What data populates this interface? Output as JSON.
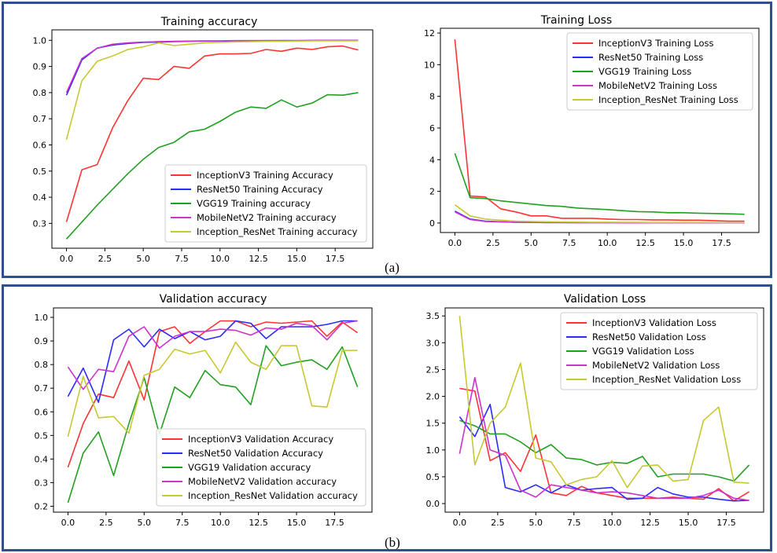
{
  "captions": {
    "a": "(a)",
    "b": "(b)"
  },
  "chart_data": [
    {
      "type": "line",
      "title": "Training accuracy",
      "xlabel": "",
      "ylabel": "",
      "xlim": [
        -0.95,
        19.95
      ],
      "ylim": [
        0.205,
        1.04
      ],
      "xticks": [
        "0.0",
        "2.5",
        "5.0",
        "7.5",
        "10.0",
        "12.5",
        "15.0",
        "17.5"
      ],
      "xtick_values": [
        0,
        2.5,
        5,
        7.5,
        10,
        12.5,
        15,
        17.5
      ],
      "yticks": [
        "0.3",
        "0.4",
        "0.5",
        "0.6",
        "0.7",
        "0.8",
        "0.9",
        "1.0"
      ],
      "ytick_values": [
        0.3,
        0.4,
        0.5,
        0.6,
        0.7,
        0.8,
        0.9,
        1.0
      ],
      "legend_position": "lower right",
      "x": [
        0,
        1,
        2,
        3,
        4,
        5,
        6,
        7,
        8,
        9,
        10,
        11,
        12,
        13,
        14,
        15,
        16,
        17,
        18,
        19
      ],
      "series": [
        {
          "name": "InceptionV3 Training Accuracy",
          "color": "#ff3333",
          "values": [
            0.305,
            0.505,
            0.525,
            0.665,
            0.77,
            0.855,
            0.85,
            0.9,
            0.893,
            0.94,
            0.948,
            0.948,
            0.95,
            0.965,
            0.958,
            0.97,
            0.965,
            0.975,
            0.978,
            0.963
          ]
        },
        {
          "name": "ResNet50 Training Accuracy",
          "color": "#2a2aff",
          "values": [
            0.79,
            0.925,
            0.97,
            0.982,
            0.988,
            0.992,
            0.993,
            0.995,
            0.996,
            0.997,
            0.997,
            0.998,
            0.998,
            0.999,
            0.999,
            0.999,
            0.999,
            0.999,
            1.0,
            1.0
          ]
        },
        {
          "name": "VGG19 Training accuracy",
          "color": "#22a022",
          "values": [
            0.24,
            0.305,
            0.37,
            0.43,
            0.49,
            0.545,
            0.59,
            0.61,
            0.65,
            0.66,
            0.69,
            0.725,
            0.745,
            0.74,
            0.772,
            0.745,
            0.76,
            0.792,
            0.79,
            0.8
          ]
        },
        {
          "name": "MobileNetV2 Training accuracy",
          "color": "#cc33cc",
          "values": [
            0.8,
            0.93,
            0.97,
            0.985,
            0.99,
            0.993,
            0.995,
            0.996,
            0.997,
            0.998,
            0.998,
            0.999,
            0.999,
            0.999,
            0.999,
            0.999,
            1.0,
            1.0,
            1.0,
            1.0
          ]
        },
        {
          "name": "Inception_ResNet Training accuracy",
          "color": "#c8c832",
          "values": [
            0.62,
            0.845,
            0.92,
            0.94,
            0.965,
            0.975,
            0.99,
            0.98,
            0.985,
            0.99,
            0.992,
            0.994,
            0.995,
            0.996,
            0.996,
            0.997,
            0.998,
            0.998,
            0.998,
            0.998
          ]
        }
      ]
    },
    {
      "type": "line",
      "title": "Training Loss",
      "xlabel": "",
      "ylabel": "",
      "xlim": [
        -0.95,
        19.95
      ],
      "ylim": [
        -0.6,
        12.3
      ],
      "xticks": [
        "0.0",
        "2.5",
        "5.0",
        "7.5",
        "10.0",
        "12.5",
        "15.0",
        "17.5"
      ],
      "xtick_values": [
        0,
        2.5,
        5,
        7.5,
        10,
        12.5,
        15,
        17.5
      ],
      "yticks": [
        "0",
        "2",
        "4",
        "6",
        "8",
        "10",
        "12"
      ],
      "ytick_values": [
        0,
        2,
        4,
        6,
        8,
        10,
        12
      ],
      "legend_position": "upper right",
      "x": [
        0,
        1,
        2,
        3,
        4,
        5,
        6,
        7,
        8,
        9,
        10,
        11,
        12,
        13,
        14,
        15,
        16,
        17,
        18,
        19
      ],
      "series": [
        {
          "name": "InceptionV3 Training Loss",
          "color": "#ff3333",
          "values": [
            11.6,
            1.7,
            1.65,
            0.9,
            0.7,
            0.45,
            0.45,
            0.3,
            0.3,
            0.3,
            0.25,
            0.22,
            0.22,
            0.2,
            0.2,
            0.18,
            0.18,
            0.15,
            0.12,
            0.12
          ]
        },
        {
          "name": "ResNet50 Training Loss",
          "color": "#2a2aff",
          "values": [
            0.75,
            0.25,
            0.12,
            0.08,
            0.05,
            0.04,
            0.03,
            0.03,
            0.02,
            0.02,
            0.02,
            0.02,
            0.01,
            0.01,
            0.01,
            0.01,
            0.01,
            0.01,
            0.01,
            0.01
          ]
        },
        {
          "name": "VGG19 Training Loss",
          "color": "#22a022",
          "values": [
            4.4,
            1.6,
            1.55,
            1.4,
            1.3,
            1.2,
            1.1,
            1.05,
            0.95,
            0.9,
            0.85,
            0.78,
            0.72,
            0.7,
            0.65,
            0.65,
            0.62,
            0.6,
            0.58,
            0.55
          ]
        },
        {
          "name": "MobileNetV2 Training Loss",
          "color": "#cc33cc",
          "values": [
            0.7,
            0.22,
            0.1,
            0.07,
            0.05,
            0.04,
            0.03,
            0.03,
            0.02,
            0.02,
            0.02,
            0.01,
            0.01,
            0.01,
            0.01,
            0.01,
            0.01,
            0.01,
            0.01,
            0.01
          ]
        },
        {
          "name": "Inception_ResNet Training Loss",
          "color": "#c8c832",
          "values": [
            1.15,
            0.45,
            0.25,
            0.18,
            0.12,
            0.1,
            0.08,
            0.07,
            0.06,
            0.05,
            0.05,
            0.04,
            0.04,
            0.03,
            0.03,
            0.03,
            0.03,
            0.03,
            0.02,
            0.02
          ]
        }
      ]
    },
    {
      "type": "line",
      "title": "Validation accuracy",
      "xlabel": "",
      "ylabel": "",
      "xlim": [
        -0.95,
        19.95
      ],
      "ylim": [
        0.175,
        1.04
      ],
      "xticks": [
        "0.0",
        "2.5",
        "5.0",
        "7.5",
        "10.0",
        "12.5",
        "15.0",
        "17.5"
      ],
      "xtick_values": [
        0,
        2.5,
        5,
        7.5,
        10,
        12.5,
        15,
        17.5
      ],
      "yticks": [
        "0.2",
        "0.3",
        "0.4",
        "0.5",
        "0.6",
        "0.7",
        "0.8",
        "0.9",
        "1.0"
      ],
      "ytick_values": [
        0.2,
        0.3,
        0.4,
        0.5,
        0.6,
        0.7,
        0.8,
        0.9,
        1.0
      ],
      "legend_position": "lower right",
      "x": [
        0,
        1,
        2,
        3,
        4,
        5,
        6,
        7,
        8,
        9,
        10,
        11,
        12,
        13,
        14,
        15,
        16,
        17,
        18,
        19
      ],
      "series": [
        {
          "name": "InceptionV3 Validation Accuracy",
          "color": "#ff3333",
          "values": [
            0.365,
            0.55,
            0.675,
            0.66,
            0.815,
            0.65,
            0.94,
            0.96,
            0.89,
            0.94,
            0.985,
            0.985,
            0.96,
            0.98,
            0.975,
            0.98,
            0.985,
            0.92,
            0.98,
            0.935
          ]
        },
        {
          "name": "ResNet50 Validation Accuracy",
          "color": "#2a2aff",
          "values": [
            0.665,
            0.785,
            0.64,
            0.905,
            0.95,
            0.875,
            0.95,
            0.91,
            0.94,
            0.905,
            0.92,
            0.985,
            0.975,
            0.91,
            0.96,
            0.96,
            0.96,
            0.97,
            0.985,
            0.985
          ]
        },
        {
          "name": "VGG19 Validation accuracy",
          "color": "#22a022",
          "values": [
            0.215,
            0.425,
            0.515,
            0.33,
            0.55,
            0.745,
            0.505,
            0.705,
            0.66,
            0.775,
            0.715,
            0.705,
            0.63,
            0.88,
            0.795,
            0.81,
            0.82,
            0.78,
            0.875,
            0.705
          ]
        },
        {
          "name": "MobileNetV2 Validation accuracy",
          "color": "#cc33cc",
          "values": [
            0.79,
            0.695,
            0.78,
            0.77,
            0.92,
            0.96,
            0.87,
            0.92,
            0.94,
            0.94,
            0.95,
            0.945,
            0.925,
            0.955,
            0.95,
            0.975,
            0.965,
            0.905,
            0.975,
            0.985
          ]
        },
        {
          "name": "Inception_ResNet Validation accuracy",
          "color": "#c8c832",
          "values": [
            0.495,
            0.75,
            0.575,
            0.58,
            0.51,
            0.755,
            0.78,
            0.865,
            0.845,
            0.86,
            0.765,
            0.895,
            0.81,
            0.78,
            0.88,
            0.88,
            0.625,
            0.62,
            0.86,
            0.86
          ]
        }
      ]
    },
    {
      "type": "line",
      "title": "Validation Loss",
      "xlabel": "",
      "ylabel": "",
      "xlim": [
        -0.95,
        19.95
      ],
      "ylim": [
        -0.16,
        3.65
      ],
      "xticks": [
        "0.0",
        "2.5",
        "5.0",
        "7.5",
        "10.0",
        "12.5",
        "15.0",
        "17.5"
      ],
      "xtick_values": [
        0,
        2.5,
        5,
        7.5,
        10,
        12.5,
        15,
        17.5
      ],
      "yticks": [
        "0.0",
        "0.5",
        "1.0",
        "1.5",
        "2.0",
        "2.5",
        "3.0",
        "3.5"
      ],
      "ytick_values": [
        0,
        0.5,
        1,
        1.5,
        2,
        2.5,
        3,
        3.5
      ],
      "legend_position": "upper right",
      "x": [
        0,
        1,
        2,
        3,
        4,
        5,
        6,
        7,
        8,
        9,
        10,
        11,
        12,
        13,
        14,
        15,
        16,
        17,
        18,
        19
      ],
      "series": [
        {
          "name": "InceptionV3 Validation Loss",
          "color": "#ff3333",
          "values": [
            2.15,
            2.1,
            0.8,
            0.95,
            0.6,
            1.28,
            0.2,
            0.15,
            0.32,
            0.2,
            0.15,
            0.1,
            0.1,
            0.1,
            0.12,
            0.1,
            0.08,
            0.28,
            0.05,
            0.22
          ]
        },
        {
          "name": "ResNet50 Validation Loss",
          "color": "#2a2aff",
          "values": [
            1.62,
            1.25,
            1.85,
            0.3,
            0.22,
            0.35,
            0.2,
            0.35,
            0.25,
            0.28,
            0.3,
            0.08,
            0.1,
            0.3,
            0.18,
            0.12,
            0.12,
            0.08,
            0.05,
            0.06
          ]
        },
        {
          "name": "VGG19 Validation Loss",
          "color": "#22a022",
          "values": [
            1.55,
            1.45,
            1.3,
            1.3,
            1.15,
            0.95,
            1.1,
            0.85,
            0.82,
            0.72,
            0.77,
            0.75,
            0.88,
            0.5,
            0.55,
            0.55,
            0.55,
            0.5,
            0.42,
            0.72
          ]
        },
        {
          "name": "MobileNetV2 Validation Loss",
          "color": "#cc33cc",
          "values": [
            0.93,
            2.35,
            1.0,
            0.9,
            0.25,
            0.12,
            0.35,
            0.3,
            0.25,
            0.2,
            0.22,
            0.2,
            0.15,
            0.1,
            0.1,
            0.1,
            0.15,
            0.25,
            0.1,
            0.06
          ]
        },
        {
          "name": "Inception_ResNet Validation Loss",
          "color": "#c8c832",
          "values": [
            3.5,
            0.72,
            1.5,
            1.8,
            2.62,
            0.85,
            0.78,
            0.35,
            0.45,
            0.5,
            0.8,
            0.3,
            0.7,
            0.72,
            0.42,
            0.45,
            1.55,
            1.8,
            0.4,
            0.38
          ]
        }
      ]
    }
  ]
}
